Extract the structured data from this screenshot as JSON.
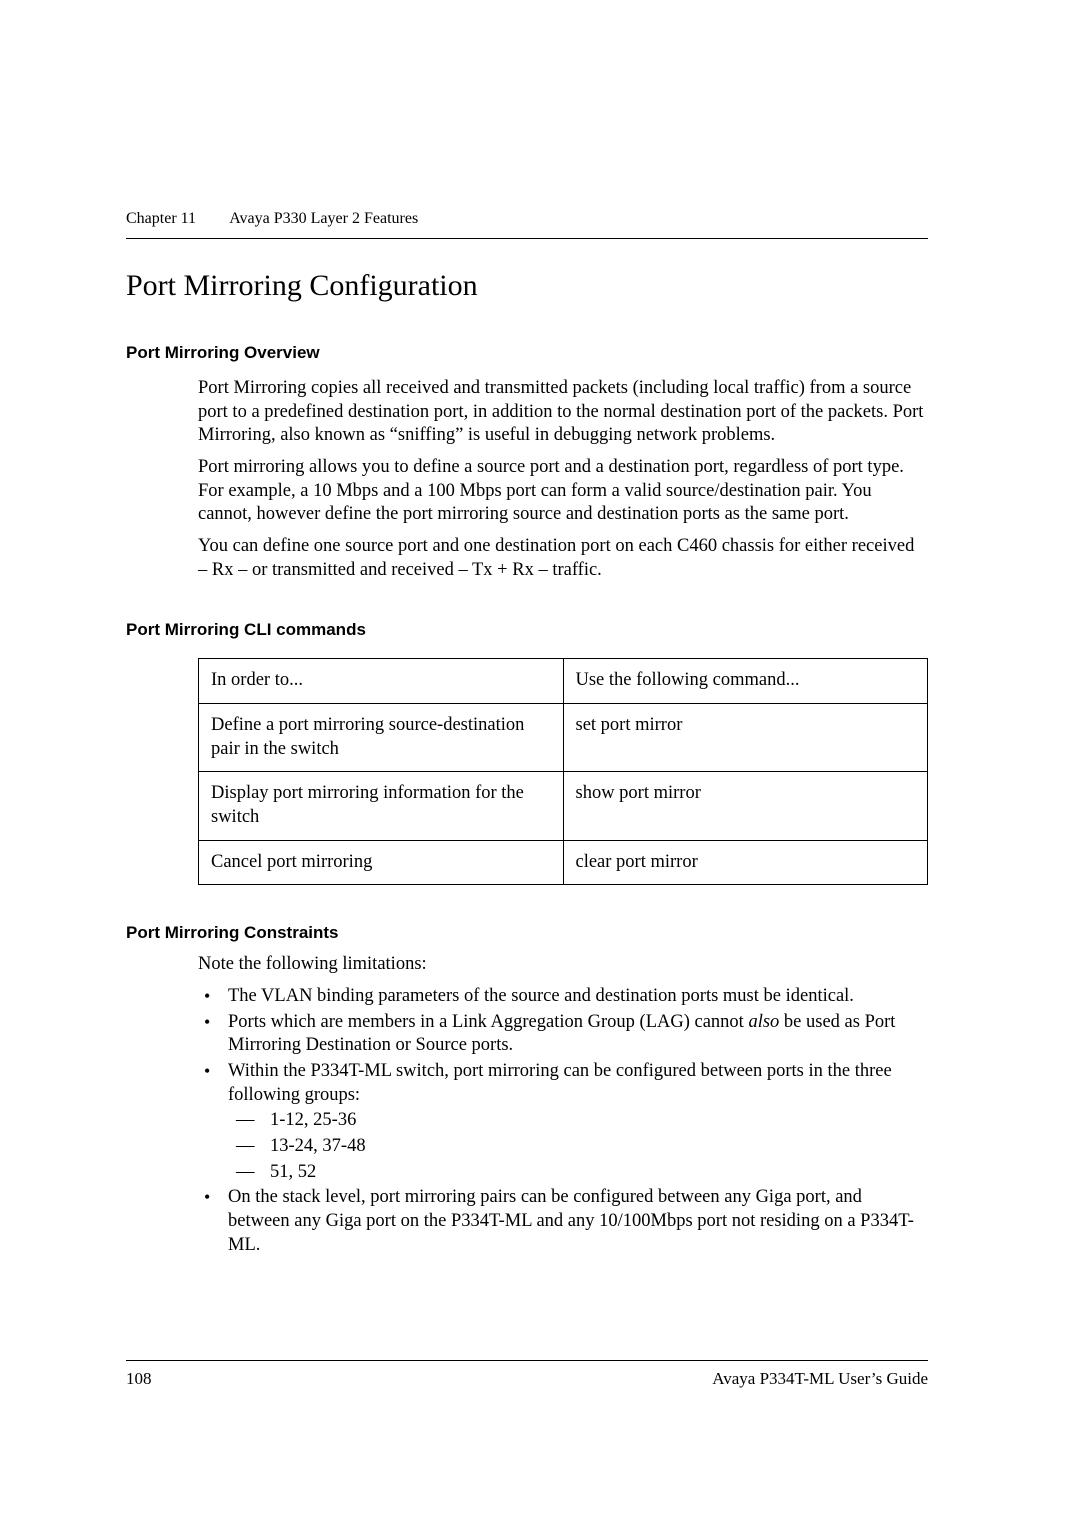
{
  "header": {
    "chapter": "Chapter 11",
    "title": "Avaya P330 Layer 2 Features"
  },
  "main": {
    "h1": "Port Mirroring Configuration",
    "overview": {
      "heading": "Port Mirroring Overview",
      "p1": "Port Mirroring copies all received and transmitted packets (including local traffic) from a source port to a predefined destination port, in addition to the normal destination port of the packets. Port Mirroring, also known as “sniffing” is useful in debugging network problems.",
      "p2": "Port mirroring allows you to define a source port and a destination port, regardless of port type. For example, a 10 Mbps and a 100 Mbps port can form a valid source/destination pair. You cannot, however define the port mirroring source and destination ports as the same port.",
      "p3": "You can define one source port and one destination port on each C460 chassis for either received – Rx – or transmitted and received – Tx + Rx – traffic."
    },
    "cli": {
      "heading": "Port Mirroring CLI commands",
      "col1_header": "In order to...",
      "col2_header": "Use the following command...",
      "rows": [
        {
          "c1": "Define a port mirroring source-destination pair in the switch",
          "c2": "set port mirror"
        },
        {
          "c1": "Display port mirroring information for the switch",
          "c2": "show port mirror"
        },
        {
          "c1": "Cancel port mirroring",
          "c2": "clear port mirror"
        }
      ]
    },
    "constraints": {
      "heading": "Port Mirroring Constraints",
      "intro": "Note the following limitations:",
      "items": {
        "b1": "The VLAN binding parameters of the source and destination ports must be identical.",
        "b2_pre": "Ports which are members in a Link Aggregation Group (LAG) cannot ",
        "b2_em": "also",
        "b2_post": " be used as Port Mirroring Destination or Source ports.",
        "b3": "Within the P334T-ML switch, port mirroring can be configured between ports in the three following groups:",
        "b3_sub": {
          "s1": "1-12, 25-36",
          "s2": "13-24, 37-48",
          "s3": "51, 52"
        },
        "b4": "On the stack level, port mirroring pairs can be configured between any Giga port, and between any Giga port on the P334T-ML and any 10/100Mbps port not residing on a P334T-ML."
      }
    }
  },
  "footer": {
    "page": "108",
    "doc": "Avaya P334T-ML User’s Guide"
  }
}
